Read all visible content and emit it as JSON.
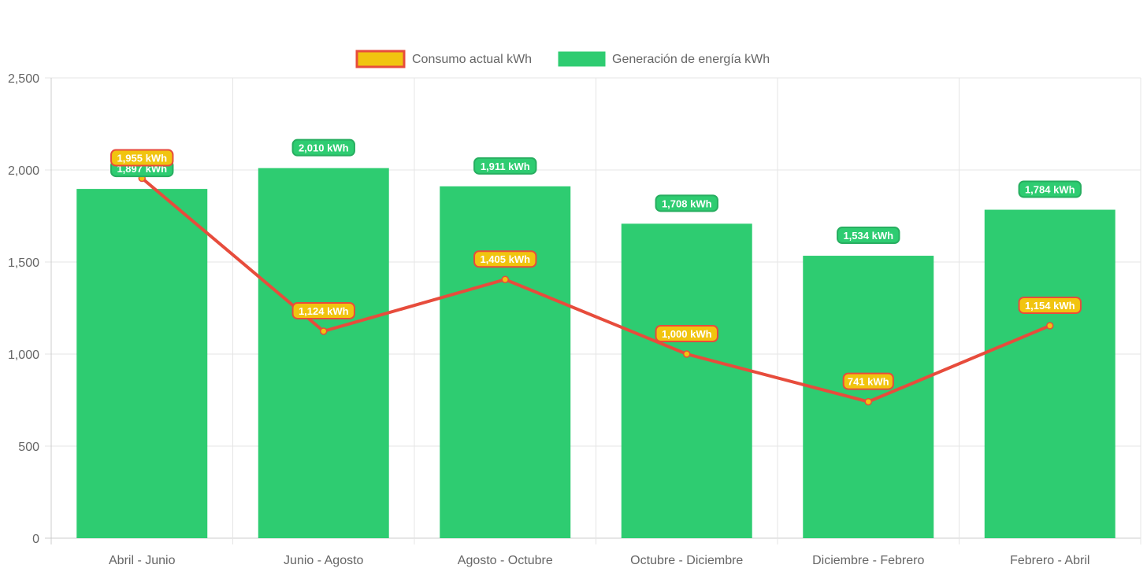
{
  "chart_data": {
    "type": "bar",
    "title": "",
    "xlabel": "",
    "ylabel": "",
    "ylim": [
      0,
      2500
    ],
    "yticks": [
      0,
      500,
      1000,
      1500,
      2000,
      2500
    ],
    "ytick_labels": [
      "0",
      "500",
      "1,000",
      "1,500",
      "2,000",
      "2,500"
    ],
    "categories": [
      "Abril - Junio",
      "Junio - Agosto",
      "Agosto - Octubre",
      "Octubre - Diciembre",
      "Diciembre - Febrero",
      "Febrero - Abril"
    ],
    "grid": true,
    "legend_position": "top-center",
    "unit_suffix": " kWh",
    "series": [
      {
        "name": "Consumo actual kWh",
        "type": "line",
        "color": "#e74c3c",
        "fill": "#f1c40f",
        "values": [
          1955,
          1124,
          1405,
          1000,
          741,
          1154
        ],
        "labels": [
          "1,955 kWh",
          "1,124 kWh",
          "1,405 kWh",
          "1,000 kWh",
          "741 kWh",
          "1,154 kWh"
        ]
      },
      {
        "name": "Generación de energía kWh",
        "type": "bar",
        "color": "#2ecc71",
        "values": [
          1897,
          2010,
          1911,
          1708,
          1534,
          1784
        ],
        "labels": [
          "1,897 kWh",
          "2,010 kWh",
          "1,911 kWh",
          "1,708 kWh",
          "1,534 kWh",
          "1,784 kWh"
        ]
      }
    ]
  }
}
